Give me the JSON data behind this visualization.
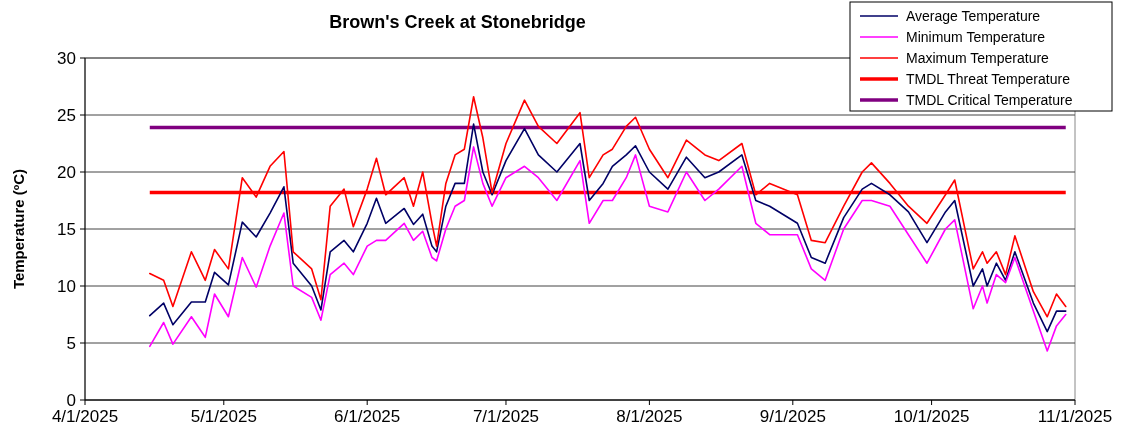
{
  "chart_data": {
    "type": "line",
    "title": "Brown's Creek at Stonebridge",
    "ylabel": "Temperature (ºC)",
    "x": [
      "2025-04-15",
      "2025-04-18",
      "2025-04-20",
      "2025-04-24",
      "2025-04-27",
      "2025-04-29",
      "2025-05-02",
      "2025-05-05",
      "2025-05-08",
      "2025-05-11",
      "2025-05-14",
      "2025-05-16",
      "2025-05-20",
      "2025-05-22",
      "2025-05-24",
      "2025-05-27",
      "2025-05-29",
      "2025-06-01",
      "2025-06-03",
      "2025-06-05",
      "2025-06-09",
      "2025-06-11",
      "2025-06-13",
      "2025-06-15",
      "2025-06-16",
      "2025-06-18",
      "2025-06-20",
      "2025-06-22",
      "2025-06-24",
      "2025-06-26",
      "2025-06-28",
      "2025-07-01",
      "2025-07-05",
      "2025-07-08",
      "2025-07-12",
      "2025-07-17",
      "2025-07-19",
      "2025-07-22",
      "2025-07-24",
      "2025-07-27",
      "2025-07-29",
      "2025-08-01",
      "2025-08-05",
      "2025-08-09",
      "2025-08-13",
      "2025-08-16",
      "2025-08-21",
      "2025-08-24",
      "2025-08-27",
      "2025-09-02",
      "2025-09-05",
      "2025-09-08",
      "2025-09-12",
      "2025-09-16",
      "2025-09-18",
      "2025-09-22",
      "2025-09-26",
      "2025-09-30",
      "2025-10-04",
      "2025-10-06",
      "2025-10-10",
      "2025-10-12",
      "2025-10-13",
      "2025-10-15",
      "2025-10-17",
      "2025-10-19",
      "2025-10-23",
      "2025-10-26",
      "2025-10-28",
      "2025-10-30"
    ],
    "series": [
      {
        "name": "Average Temperature",
        "color": "#000066",
        "values": [
          7.4,
          8.5,
          6.6,
          8.6,
          8.6,
          11.2,
          10.1,
          15.6,
          14.3,
          16.4,
          18.7,
          12.0,
          10.0,
          7.9,
          13.0,
          14.0,
          13.0,
          15.5,
          17.7,
          15.5,
          16.8,
          15.4,
          16.3,
          13.5,
          13.0,
          17.0,
          19.0,
          19.0,
          24.2,
          20.0,
          18.0,
          21.0,
          23.8,
          21.5,
          20.0,
          22.5,
          17.5,
          19.0,
          20.5,
          21.5,
          22.3,
          20.0,
          18.5,
          21.3,
          19.5,
          20.0,
          21.5,
          17.5,
          17.0,
          15.5,
          12.5,
          12.0,
          16.0,
          18.5,
          19.0,
          18.0,
          16.5,
          13.8,
          16.5,
          17.5,
          10.0,
          11.5,
          10.0,
          12.0,
          10.5,
          13.0,
          8.5,
          6.0,
          7.8,
          7.8
        ]
      },
      {
        "name": "Minimum Temperature",
        "color": "#ff00ff",
        "values": [
          4.7,
          6.8,
          4.9,
          7.3,
          5.5,
          9.3,
          7.3,
          12.5,
          9.9,
          13.5,
          16.4,
          10.0,
          9.0,
          7.0,
          11.0,
          12.0,
          11.0,
          13.5,
          14.0,
          14.0,
          15.5,
          14.0,
          14.8,
          12.5,
          12.2,
          15.0,
          17.0,
          17.5,
          22.2,
          19.0,
          17.0,
          19.5,
          20.5,
          19.5,
          17.5,
          21.0,
          15.5,
          17.5,
          17.5,
          19.5,
          21.5,
          17.0,
          16.5,
          20.0,
          17.5,
          18.5,
          20.5,
          15.5,
          14.5,
          14.5,
          11.5,
          10.5,
          15.0,
          17.5,
          17.5,
          17.0,
          14.5,
          12.0,
          15.0,
          15.8,
          8.0,
          10.0,
          8.5,
          11.0,
          10.3,
          12.5,
          7.8,
          4.3,
          6.5,
          7.5
        ]
      },
      {
        "name": "Maximum Temperature",
        "color": "#ff0000",
        "values": [
          11.1,
          10.5,
          8.2,
          13.0,
          10.5,
          13.2,
          11.5,
          19.5,
          17.8,
          20.5,
          21.8,
          13.0,
          11.5,
          8.8,
          17.0,
          18.5,
          15.2,
          18.5,
          21.2,
          18.0,
          19.5,
          17.0,
          20.0,
          15.5,
          13.5,
          19.0,
          21.5,
          22.0,
          26.6,
          23.0,
          18.2,
          22.5,
          26.3,
          24.0,
          22.5,
          25.2,
          19.5,
          21.5,
          22.0,
          24.0,
          24.8,
          22.0,
          19.5,
          22.8,
          21.5,
          21.0,
          22.5,
          18.0,
          19.0,
          18.0,
          14.0,
          13.8,
          17.0,
          20.0,
          20.8,
          19.0,
          17.0,
          15.5,
          18.0,
          19.3,
          11.5,
          13.0,
          12.0,
          13.0,
          11.0,
          14.4,
          9.5,
          7.3,
          9.3,
          8.2
        ]
      }
    ],
    "ref_lines": [
      {
        "axis": "y",
        "value": 18.2,
        "label": "TMDL Threat Temperature",
        "color": "#ff0000"
      },
      {
        "axis": "y",
        "value": 23.9,
        "label": "TMDL Critical Temperature",
        "color": "#800080"
      }
    ],
    "xlim": [
      "2025-04-01",
      "2025-11-01"
    ],
    "xticks": [
      {
        "value": "2025-04-01",
        "label": "4/1/2025"
      },
      {
        "value": "2025-05-01",
        "label": "5/1/2025"
      },
      {
        "value": "2025-06-01",
        "label": "6/1/2025"
      },
      {
        "value": "2025-07-01",
        "label": "7/1/2025"
      },
      {
        "value": "2025-08-01",
        "label": "8/1/2025"
      },
      {
        "value": "2025-09-01",
        "label": "9/1/2025"
      },
      {
        "value": "2025-10-01",
        "label": "10/1/2025"
      },
      {
        "value": "2025-11-01",
        "label": "11/1/2025"
      }
    ],
    "ylim": [
      0,
      30
    ],
    "yticks": [
      0,
      5,
      10,
      15,
      20,
      25,
      30
    ],
    "grid": "y",
    "legend": "top right",
    "marker": "none",
    "line_style": "solid"
  }
}
